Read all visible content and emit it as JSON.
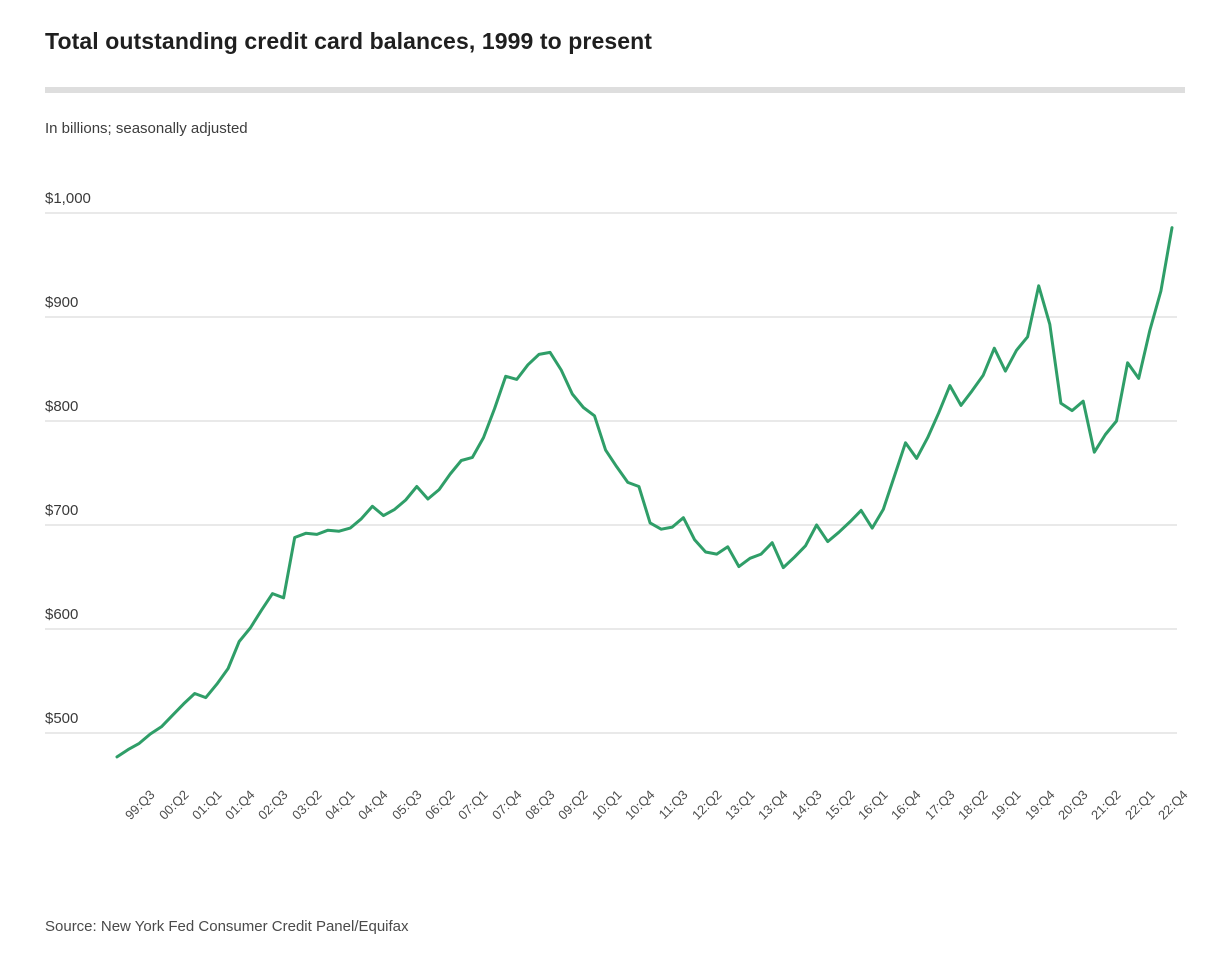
{
  "header": {
    "title": "Total outstanding credit card balances, 1999 to present",
    "subtitle": "In billions; seasonally adjusted"
  },
  "source": {
    "label": "Source: New York Fed Consumer Credit Panel/Equifax"
  },
  "colors": {
    "line": "#2f9e68",
    "grid": "#e2e2e2",
    "divider": "#dedede",
    "title_text": "#1f1f1f",
    "axis_text": "#4d4d4d"
  },
  "chart_data": {
    "type": "line",
    "title": "Total outstanding credit card balances, 1999 to present",
    "subtitle": "In billions; seasonally adjusted",
    "unit": "USD billions",
    "series_name": "Total outstanding credit card balances",
    "legend": "none",
    "grid": "horizontal-only",
    "ylim": [
      470,
      1010
    ],
    "y_ticks": [
      {
        "label": "$500",
        "value": 500
      },
      {
        "label": "$600",
        "value": 600
      },
      {
        "label": "$700",
        "value": 700
      },
      {
        "label": "$800",
        "value": 800
      },
      {
        "label": "$900",
        "value": 900
      },
      {
        "label": "$1,000",
        "value": 1000
      }
    ],
    "x_tick_labels": [
      "99:Q3",
      "00:Q2",
      "01:Q1",
      "01:Q4",
      "02:Q3",
      "03:Q2",
      "04:Q1",
      "04:Q4",
      "05:Q3",
      "06:Q2",
      "07:Q1",
      "07:Q4",
      "08:Q3",
      "09:Q2",
      "10:Q1",
      "10:Q4",
      "11:Q3",
      "12:Q2",
      "13:Q1",
      "13:Q4",
      "14:Q3",
      "15:Q2",
      "16:Q1",
      "16:Q4",
      "17:Q3",
      "18:Q2",
      "19:Q1",
      "19:Q4",
      "20:Q3",
      "21:Q2",
      "22:Q1",
      "22:Q4"
    ],
    "x": [
      "99:Q1",
      "99:Q2",
      "99:Q3",
      "99:Q4",
      "00:Q1",
      "00:Q2",
      "00:Q3",
      "00:Q4",
      "01:Q1",
      "01:Q2",
      "01:Q3",
      "01:Q4",
      "02:Q1",
      "02:Q2",
      "02:Q3",
      "02:Q4",
      "03:Q1",
      "03:Q2",
      "03:Q3",
      "03:Q4",
      "04:Q1",
      "04:Q2",
      "04:Q3",
      "04:Q4",
      "05:Q1",
      "05:Q2",
      "05:Q3",
      "05:Q4",
      "06:Q1",
      "06:Q2",
      "06:Q3",
      "06:Q4",
      "07:Q1",
      "07:Q2",
      "07:Q3",
      "07:Q4",
      "08:Q1",
      "08:Q2",
      "08:Q3",
      "08:Q4",
      "09:Q1",
      "09:Q2",
      "09:Q3",
      "09:Q4",
      "10:Q1",
      "10:Q2",
      "10:Q3",
      "10:Q4",
      "11:Q1",
      "11:Q2",
      "11:Q3",
      "11:Q4",
      "12:Q1",
      "12:Q2",
      "12:Q3",
      "12:Q4",
      "13:Q1",
      "13:Q2",
      "13:Q3",
      "13:Q4",
      "14:Q1",
      "14:Q2",
      "14:Q3",
      "14:Q4",
      "15:Q1",
      "15:Q2",
      "15:Q3",
      "15:Q4",
      "16:Q1",
      "16:Q2",
      "16:Q3",
      "16:Q4",
      "17:Q1",
      "17:Q2",
      "17:Q3",
      "17:Q4",
      "18:Q1",
      "18:Q2",
      "18:Q3",
      "18:Q4",
      "19:Q1",
      "19:Q2",
      "19:Q3",
      "19:Q4",
      "20:Q1",
      "20:Q2",
      "20:Q3",
      "20:Q4",
      "21:Q1",
      "21:Q2",
      "21:Q3",
      "21:Q4",
      "22:Q1",
      "22:Q2",
      "22:Q3",
      "22:Q4"
    ],
    "values": [
      477,
      484,
      490,
      499,
      506,
      517,
      528,
      538,
      534,
      547,
      562,
      588,
      601,
      618,
      634,
      630,
      688,
      692,
      691,
      695,
      694,
      697,
      706,
      718,
      709,
      715,
      724,
      737,
      725,
      734,
      749,
      762,
      765,
      784,
      812,
      843,
      840,
      854,
      864,
      866,
      849,
      826,
      813,
      805,
      772,
      756,
      741,
      737,
      702,
      696,
      698,
      707,
      686,
      674,
      672,
      679,
      660,
      668,
      672,
      683,
      659,
      669,
      680,
      700,
      684,
      693,
      703,
      714,
      697,
      715,
      747,
      779,
      764,
      784,
      808,
      834,
      815,
      829,
      844,
      870,
      848,
      868,
      881,
      930,
      893,
      817,
      810,
      819,
      770,
      787,
      800,
      856,
      841,
      887,
      925,
      986
    ]
  }
}
